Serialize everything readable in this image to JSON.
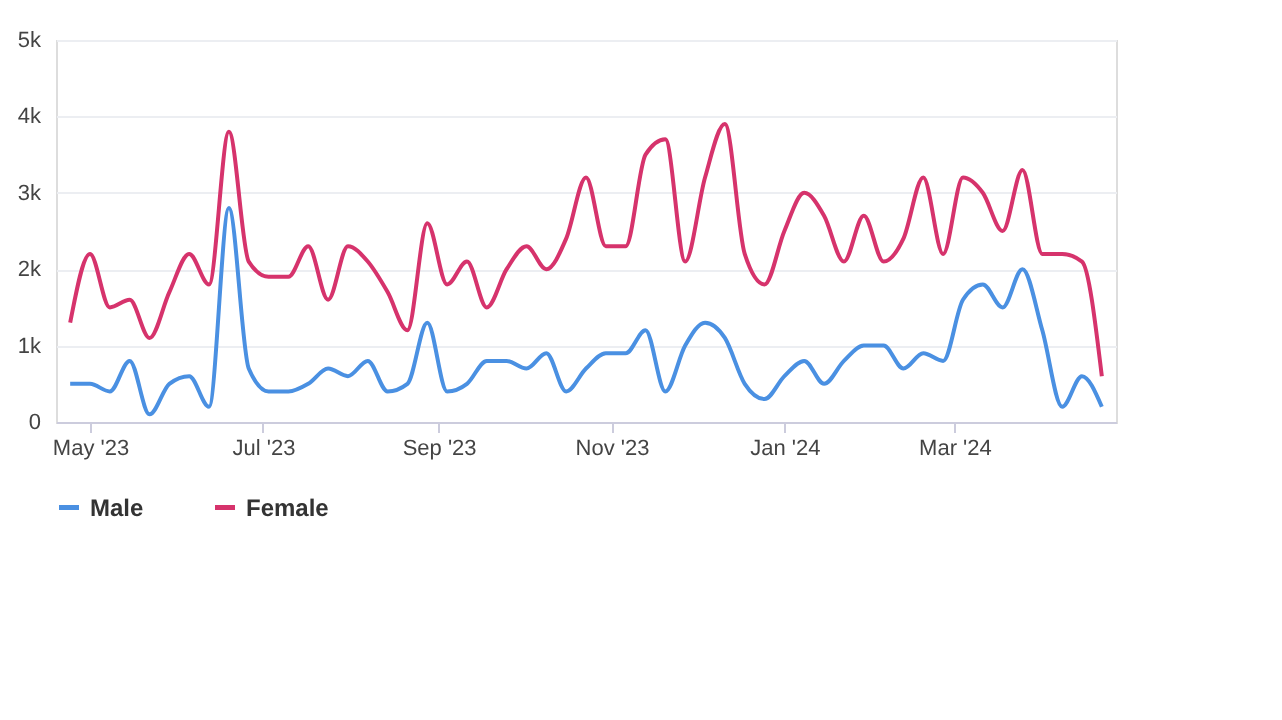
{
  "chart_data": {
    "type": "line",
    "x": [
      "2023-04-24",
      "2023-05-01",
      "2023-05-08",
      "2023-05-15",
      "2023-05-22",
      "2023-05-29",
      "2023-06-05",
      "2023-06-12",
      "2023-06-19",
      "2023-06-26",
      "2023-07-03",
      "2023-07-10",
      "2023-07-17",
      "2023-07-24",
      "2023-07-31",
      "2023-08-07",
      "2023-08-14",
      "2023-08-21",
      "2023-08-28",
      "2023-09-04",
      "2023-09-11",
      "2023-09-18",
      "2023-09-25",
      "2023-10-02",
      "2023-10-09",
      "2023-10-16",
      "2023-10-23",
      "2023-10-30",
      "2023-11-06",
      "2023-11-13",
      "2023-11-20",
      "2023-11-27",
      "2023-12-04",
      "2023-12-11",
      "2023-12-18",
      "2023-12-25",
      "2024-01-01",
      "2024-01-08",
      "2024-01-15",
      "2024-01-22",
      "2024-01-29",
      "2024-02-05",
      "2024-02-12",
      "2024-02-19",
      "2024-02-26",
      "2024-03-04",
      "2024-03-11",
      "2024-03-18",
      "2024-03-25",
      "2024-04-01",
      "2024-04-08",
      "2024-04-15",
      "2024-04-22"
    ],
    "series": [
      {
        "name": "Male",
        "color": "#4a90e2",
        "values": [
          500,
          500,
          400,
          800,
          100,
          500,
          600,
          200,
          2800,
          700,
          400,
          400,
          500,
          700,
          600,
          800,
          400,
          500,
          1300,
          400,
          500,
          800,
          800,
          700,
          900,
          400,
          700,
          900,
          900,
          1200,
          400,
          1000,
          1300,
          1100,
          500,
          300,
          600,
          800,
          500,
          800,
          1000,
          1000,
          700,
          900,
          800,
          1600,
          1800,
          1500,
          2000,
          1200,
          200,
          600,
          200
        ]
      },
      {
        "name": "Female",
        "color": "#d6336c",
        "values": [
          1300,
          2200,
          1500,
          1600,
          1100,
          1700,
          2200,
          1800,
          3800,
          2100,
          1900,
          1900,
          2300,
          1600,
          2300,
          2100,
          1700,
          1200,
          2600,
          1800,
          2100,
          1500,
          2000,
          2300,
          2000,
          2400,
          3200,
          2300,
          2300,
          3500,
          3700,
          2100,
          3200,
          3900,
          2200,
          1800,
          2500,
          3000,
          2700,
          2100,
          2700,
          2100,
          2400,
          3200,
          2200,
          3200,
          3000,
          2500,
          3300,
          2200,
          2200,
          2100,
          600
        ]
      }
    ],
    "xlim": [
      "2023-04-19",
      "2024-04-27"
    ],
    "xticks": [
      {
        "value": "2023-05-01",
        "label": "May '23"
      },
      {
        "value": "2023-07-01",
        "label": "Jul '23"
      },
      {
        "value": "2023-09-01",
        "label": "Sep '23"
      },
      {
        "value": "2023-11-01",
        "label": "Nov '23"
      },
      {
        "value": "2024-01-01",
        "label": "Jan '24"
      },
      {
        "value": "2024-03-01",
        "label": "Mar '24"
      }
    ],
    "ylim": [
      0,
      5000
    ],
    "yticks": [
      0,
      {
        "value": 1000,
        "label": "1k"
      },
      {
        "value": 2000,
        "label": "2k"
      },
      {
        "value": 3000,
        "label": "3k"
      },
      {
        "value": 4000,
        "label": "4k"
      },
      {
        "value": 5000,
        "label": "5k"
      }
    ],
    "grid": "y",
    "legend": "bottom",
    "marker": "none",
    "line_style": "solid"
  }
}
